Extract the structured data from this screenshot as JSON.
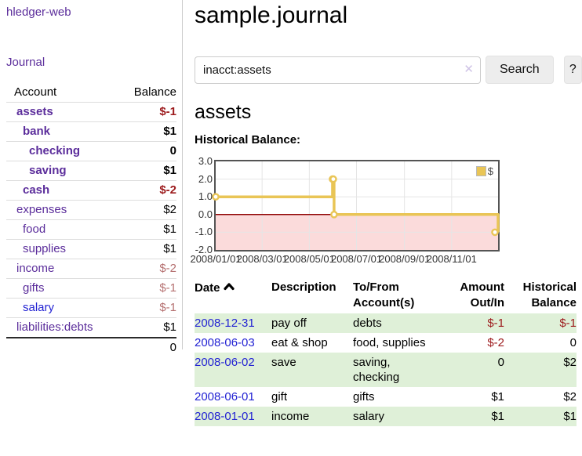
{
  "app": {
    "brand": "hledger-web",
    "nav": {
      "journal": "Journal"
    }
  },
  "sidebar": {
    "columns": {
      "account": "Account",
      "balance": "Balance"
    },
    "accounts": [
      {
        "name": "assets",
        "depth": 1,
        "balance": "$-1",
        "name_style": "bold",
        "bal_style": "neg-bold"
      },
      {
        "name": "bank",
        "depth": 2,
        "balance": "$1",
        "name_style": "bold",
        "bal_style": "bold"
      },
      {
        "name": "checking",
        "depth": 3,
        "balance": "0",
        "name_style": "bold",
        "bal_style": "bold"
      },
      {
        "name": "saving",
        "depth": 3,
        "balance": "$1",
        "name_style": "bold",
        "bal_style": "bold"
      },
      {
        "name": "cash",
        "depth": 2,
        "balance": "$-2",
        "name_style": "bold",
        "bal_style": "neg-bold"
      },
      {
        "name": "expenses",
        "depth": 1,
        "balance": "$2",
        "name_style": "",
        "bal_style": ""
      },
      {
        "name": "food",
        "depth": 2,
        "balance": "$1",
        "name_style": "",
        "bal_style": ""
      },
      {
        "name": "supplies",
        "depth": 2,
        "balance": "$1",
        "name_style": "",
        "bal_style": ""
      },
      {
        "name": "income",
        "depth": 1,
        "balance": "$-2",
        "name_style": "",
        "bal_style": "neg-soft"
      },
      {
        "name": "gifts",
        "depth": 2,
        "balance": "$-1",
        "name_style": "",
        "bal_style": "neg-soft"
      },
      {
        "name": "salary",
        "depth": 2,
        "balance": "$-1",
        "name_style": "blue",
        "bal_style": "neg-soft"
      },
      {
        "name": "liabilities:debts",
        "depth": 1,
        "balance": "$1",
        "name_style": "",
        "bal_style": ""
      }
    ],
    "total": "0"
  },
  "main": {
    "title": "sample.journal",
    "search": {
      "value": "inacct:assets",
      "clear_icon": "✕",
      "button": "Search",
      "help_button": "?"
    },
    "account_heading": "assets",
    "chart_title": "Historical Balance:"
  },
  "chart_data": {
    "type": "line",
    "steps": true,
    "title": "Historical Balance",
    "legend": "$",
    "legend_position": "top-right",
    "series": [
      {
        "name": "$",
        "color": "#e9c556",
        "points": [
          {
            "date": "2008-01-01",
            "day": 0,
            "value": 1
          },
          {
            "date": "2008-06-01",
            "day": 151,
            "value": 2
          },
          {
            "date": "2008-06-02",
            "day": 152,
            "value": 2
          },
          {
            "date": "2008-06-03",
            "day": 153,
            "value": 0
          },
          {
            "date": "2008-12-31",
            "day": 365,
            "value": -1
          }
        ]
      }
    ],
    "ylim": [
      -2,
      3
    ],
    "xlim_days": [
      0,
      365
    ],
    "yticks": [
      {
        "v": 3,
        "label": "3.0"
      },
      {
        "v": 2,
        "label": "2.0"
      },
      {
        "v": 1,
        "label": "1.0"
      },
      {
        "v": 0,
        "label": "0.0"
      },
      {
        "v": -1,
        "label": "-1.0"
      },
      {
        "v": -2,
        "label": "-2.0"
      }
    ],
    "xticks": [
      {
        "day": 0,
        "label": "2008/01/01"
      },
      {
        "day": 60,
        "label": "2008/03/01"
      },
      {
        "day": 121,
        "label": "2008/05/01"
      },
      {
        "day": 182,
        "label": "2008/07/01"
      },
      {
        "day": 244,
        "label": "2008/09/01"
      },
      {
        "day": 305,
        "label": "2008/11/01"
      }
    ],
    "grid": true,
    "negative_region_fill": "#fbdbdb",
    "zero_line_color": "#8e0000",
    "grid_color": "#e5e5e5",
    "border_color": "#545454"
  },
  "register": {
    "headers": {
      "date": "Date",
      "description": "Description",
      "account": "To/From Account(s)",
      "amount": "Amount Out/In",
      "balance": "Historical Balance"
    },
    "rows": [
      {
        "date": "2008-12-31",
        "description": "pay off",
        "account": "debts",
        "amount": "$-1",
        "balance": "$-1",
        "amount_neg": true,
        "balance_neg": true
      },
      {
        "date": "2008-06-03",
        "description": "eat & shop",
        "account": "food, supplies",
        "amount": "$-2",
        "balance": "0",
        "amount_neg": true,
        "balance_neg": false
      },
      {
        "date": "2008-06-02",
        "description": "save",
        "account": "saving, checking",
        "amount": "0",
        "balance": "$2",
        "amount_neg": false,
        "balance_neg": false
      },
      {
        "date": "2008-06-01",
        "description": "gift",
        "account": "gifts",
        "amount": "$1",
        "balance": "$2",
        "amount_neg": false,
        "balance_neg": false
      },
      {
        "date": "2008-01-01",
        "description": "income",
        "account": "salary",
        "amount": "$1",
        "balance": "$1",
        "amount_neg": false,
        "balance_neg": false
      }
    ]
  }
}
